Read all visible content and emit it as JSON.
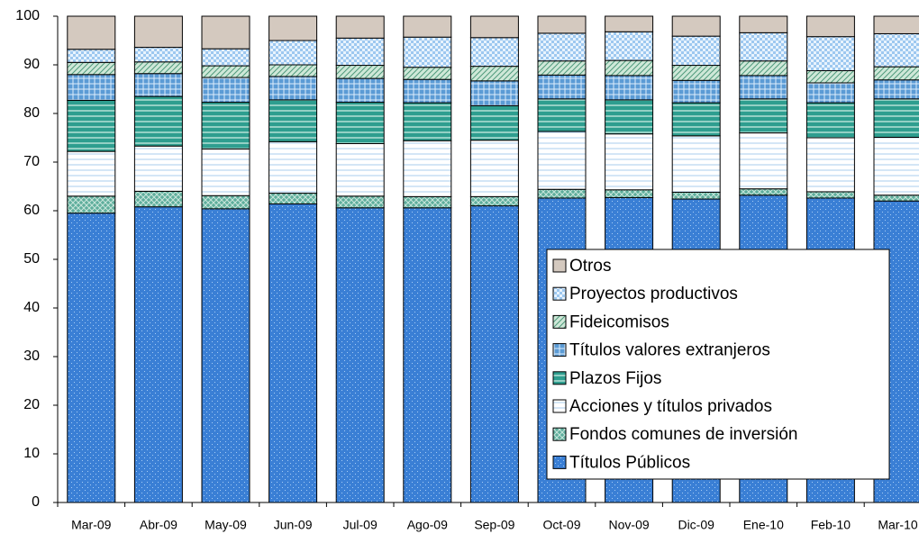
{
  "chart_data": {
    "type": "stacked-bar",
    "categories": [
      "Mar-09",
      "Abr-09",
      "May-09",
      "Jun-09",
      "Jul-09",
      "Ago-09",
      "Sep-09",
      "Oct-09",
      "Nov-09",
      "Dic-09",
      "Ene-10",
      "Feb-10",
      "Mar-10"
    ],
    "series": [
      {
        "name": "Títulos Públicos",
        "color": "#3a7fd5",
        "values": [
          59.5,
          60.8,
          60.4,
          61.4,
          60.6,
          60.6,
          61.0,
          62.6,
          62.7,
          62.4,
          63.2,
          62.6,
          62.0
        ]
      },
      {
        "name": "Fondos comunes de inversión",
        "color": "#5fae9c",
        "values": [
          3.5,
          3.2,
          2.7,
          2.2,
          2.4,
          2.3,
          1.9,
          1.8,
          1.6,
          1.4,
          1.3,
          1.3,
          1.2
        ]
      },
      {
        "name": "Acciones y títulos privados",
        "color": "#ffffff",
        "values": [
          9.2,
          9.3,
          9.6,
          10.6,
          10.8,
          11.5,
          11.6,
          11.9,
          11.5,
          11.6,
          11.5,
          11.1,
          11.9
        ]
      },
      {
        "name": "Plazos Fijos",
        "color": "#2e9e8f",
        "values": [
          10.5,
          10.2,
          9.6,
          8.6,
          8.5,
          7.8,
          7.1,
          6.7,
          7.0,
          6.8,
          7.0,
          7.2,
          7.9
        ]
      },
      {
        "name": "Títulos valores extranjeros",
        "color": "#5b9bd5",
        "values": [
          5.3,
          4.7,
          5.1,
          4.8,
          4.9,
          4.8,
          5.1,
          4.9,
          5.0,
          4.6,
          4.8,
          4.1,
          3.9
        ]
      },
      {
        "name": "Fideicomisos",
        "color": "#cfe8d8",
        "values": [
          2.5,
          2.4,
          2.4,
          2.4,
          2.7,
          2.5,
          3.0,
          2.9,
          3.1,
          3.1,
          3.0,
          2.5,
          2.7
        ]
      },
      {
        "name": "Proyectos productivos",
        "color": "#9dc8f0",
        "values": [
          2.7,
          3.0,
          3.5,
          5.0,
          5.6,
          6.2,
          5.9,
          5.7,
          5.9,
          6.0,
          5.8,
          7.0,
          6.8
        ]
      },
      {
        "name": "Otros",
        "color": "#d4c9bf",
        "values": [
          6.8,
          6.4,
          6.7,
          5.0,
          4.5,
          4.3,
          4.4,
          3.5,
          3.2,
          4.1,
          3.4,
          4.2,
          3.6
        ]
      }
    ],
    "ylim": [
      0,
      100
    ],
    "yticks": [
      0,
      10,
      20,
      30,
      40,
      50,
      60,
      70,
      80,
      90,
      100
    ],
    "legend": "lower-right"
  }
}
